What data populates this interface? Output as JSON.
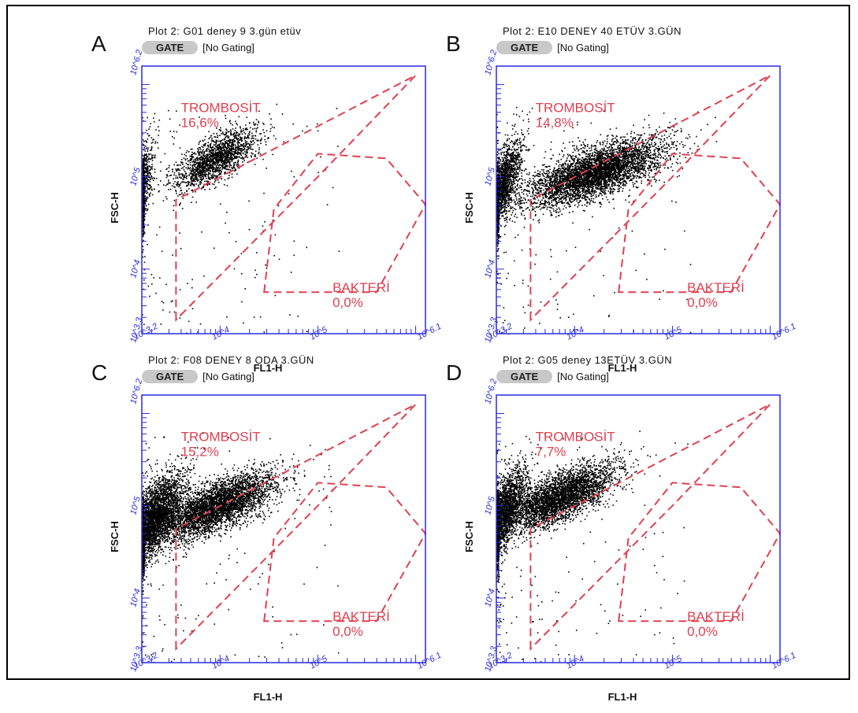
{
  "chart_data": [
    {
      "type": "scatter",
      "letter": "A",
      "title": "Plot 2: G01 deney 9 3.gün etüv",
      "gate_button": "GATE",
      "gating": "[No Gating]",
      "xlabel": "FL1-H",
      "ylabel": "FSC-H",
      "xlim": [
        3.2,
        6.1
      ],
      "ylim": [
        3.3,
        6.2
      ],
      "scale": "log10",
      "x_ticks": [
        {
          "v": 3.2,
          "label": "10^3.2"
        },
        {
          "v": 4,
          "label": "10^4"
        },
        {
          "v": 5,
          "label": "10^5"
        },
        {
          "v": 6.1,
          "label": "10^6.1"
        }
      ],
      "y_ticks": [
        {
          "v": 3.3,
          "label": "10^3.3"
        },
        {
          "v": 4,
          "label": "10^4"
        },
        {
          "v": 5,
          "label": "10^5"
        },
        {
          "v": 6.2,
          "label": "10^6.2"
        }
      ],
      "gates": [
        {
          "name": "TROMBOSİT",
          "percent": "16,6%"
        },
        {
          "name": "BAKTERİ",
          "percent": "0,0%"
        }
      ],
      "clusters": [
        {
          "cx": 3.2,
          "cy": 4.9,
          "sx": 0.06,
          "sy": 0.3,
          "n": 700
        },
        {
          "cx": 3.95,
          "cy": 5.2,
          "sx": 0.22,
          "sy": 0.2,
          "n": 1800
        }
      ]
    },
    {
      "type": "scatter",
      "letter": "B",
      "title": "Plot 2: E10 DENEY 40 ETÜV 3.GÜN",
      "gate_button": "GATE",
      "gating": "[No Gating]",
      "xlabel": "FL1-H",
      "ylabel": "FSC-H",
      "xlim": [
        3.2,
        6.1
      ],
      "ylim": [
        3.3,
        6.2
      ],
      "scale": "log10",
      "x_ticks": [
        {
          "v": 3.2,
          "label": "10^3.2"
        },
        {
          "v": 4,
          "label": "10^4"
        },
        {
          "v": 5,
          "label": "10^5"
        },
        {
          "v": 6.1,
          "label": "10^6.1"
        }
      ],
      "y_ticks": [
        {
          "v": 3.3,
          "label": "10^3.3"
        },
        {
          "v": 4,
          "label": "10^4"
        },
        {
          "v": 5,
          "label": "10^5"
        },
        {
          "v": 6.2,
          "label": "10^6.2"
        }
      ],
      "gates": [
        {
          "name": "TROMBOSİT",
          "percent": "14,8%"
        },
        {
          "name": "BAKTERİ",
          "percent": "0,0%"
        }
      ],
      "clusters": [
        {
          "cx": 3.25,
          "cy": 4.9,
          "sx": 0.1,
          "sy": 0.3,
          "n": 1800
        },
        {
          "cx": 4.2,
          "cy": 5.05,
          "sx": 0.35,
          "sy": 0.22,
          "n": 4500
        }
      ]
    },
    {
      "type": "scatter",
      "letter": "C",
      "title": "Plot 2: F08 DENEY 8 ODA 3.GÜN",
      "gate_button": "GATE",
      "gating": "[No Gating]",
      "xlabel": "FL1-H",
      "ylabel": "FSC-H",
      "xlim": [
        3.2,
        6.1
      ],
      "ylim": [
        3.3,
        6.2
      ],
      "scale": "log10",
      "x_ticks": [
        {
          "v": 3.2,
          "label": "10^3.2"
        },
        {
          "v": 4,
          "label": "10^4"
        },
        {
          "v": 5,
          "label": "10^5"
        },
        {
          "v": 6.1,
          "label": "10^6.1"
        }
      ],
      "y_ticks": [
        {
          "v": 3.3,
          "label": "10^3.3"
        },
        {
          "v": 4,
          "label": "10^4"
        },
        {
          "v": 5,
          "label": "10^5"
        },
        {
          "v": 6.2,
          "label": "10^6.2"
        }
      ],
      "gates": [
        {
          "name": "TROMBOSİT",
          "percent": "15,2%"
        },
        {
          "name": "BAKTERİ",
          "percent": "0,0%"
        }
      ],
      "clusters": [
        {
          "cx": 3.3,
          "cy": 4.85,
          "sx": 0.15,
          "sy": 0.3,
          "n": 3500
        },
        {
          "cx": 3.95,
          "cy": 5.0,
          "sx": 0.3,
          "sy": 0.22,
          "n": 4000
        }
      ]
    },
    {
      "type": "scatter",
      "letter": "D",
      "title": "Plot 2: G05 deney 13ETÜV 3.GÜN",
      "gate_button": "GATE",
      "gating": "[No Gating]",
      "xlabel": "FL1-H",
      "ylabel": "FSC-H",
      "xlim": [
        3.2,
        6.1
      ],
      "ylim": [
        3.3,
        6.2
      ],
      "scale": "log10",
      "x_ticks": [
        {
          "v": 3.2,
          "label": "10^3.2"
        },
        {
          "v": 4,
          "label": "10^4"
        },
        {
          "v": 5,
          "label": "10^5"
        },
        {
          "v": 6.1,
          "label": "10^6.1"
        }
      ],
      "y_ticks": [
        {
          "v": 3.3,
          "label": "10^3.3"
        },
        {
          "v": 4,
          "label": "10^4"
        },
        {
          "v": 5,
          "label": "10^5"
        },
        {
          "v": 6.2,
          "label": "10^6.2"
        }
      ],
      "gates": [
        {
          "name": "TROMBOSİT",
          "percent": "7,7%"
        },
        {
          "name": "BAKTERİ",
          "percent": "0,0%"
        }
      ],
      "clusters": [
        {
          "cx": 3.25,
          "cy": 4.9,
          "sx": 0.12,
          "sy": 0.3,
          "n": 2500
        },
        {
          "cx": 3.85,
          "cy": 5.1,
          "sx": 0.28,
          "sy": 0.22,
          "n": 3500
        }
      ]
    }
  ],
  "colors": {
    "axis": "#2a2ae0",
    "gate": "#e04050",
    "dots": "#000000",
    "gate_button": "#c8c8c8"
  }
}
